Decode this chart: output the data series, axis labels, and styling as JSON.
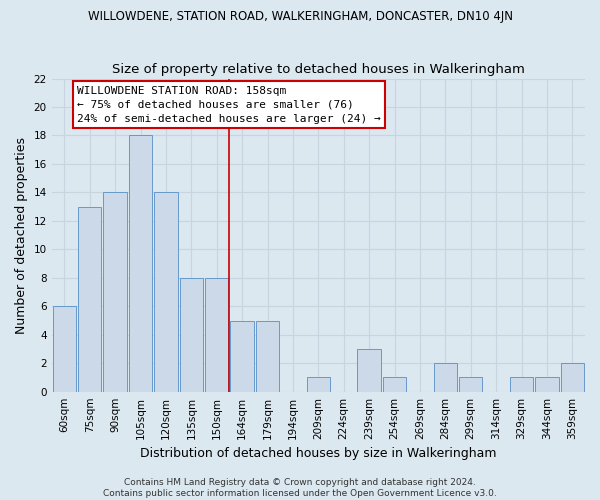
{
  "title": "WILLOWDENE, STATION ROAD, WALKERINGHAM, DONCASTER, DN10 4JN",
  "subtitle": "Size of property relative to detached houses in Walkeringham",
  "xlabel": "Distribution of detached houses by size in Walkeringham",
  "ylabel": "Number of detached properties",
  "categories": [
    "60sqm",
    "75sqm",
    "90sqm",
    "105sqm",
    "120sqm",
    "135sqm",
    "150sqm",
    "164sqm",
    "179sqm",
    "194sqm",
    "209sqm",
    "224sqm",
    "239sqm",
    "254sqm",
    "269sqm",
    "284sqm",
    "299sqm",
    "314sqm",
    "329sqm",
    "344sqm",
    "359sqm"
  ],
  "values": [
    6,
    13,
    14,
    18,
    14,
    8,
    8,
    5,
    5,
    0,
    1,
    0,
    3,
    1,
    0,
    2,
    1,
    0,
    1,
    1,
    2
  ],
  "bar_color": "#ccd9e8",
  "bar_edgecolor": "#6699cc",
  "reference_line_index": 7,
  "annotation_text": "WILLOWDENE STATION ROAD: 158sqm\n← 75% of detached houses are smaller (76)\n24% of semi-detached houses are larger (24) →",
  "annotation_box_facecolor": "#ffffff",
  "annotation_box_edgecolor": "#cc0000",
  "ylim_max": 22,
  "yticks": [
    0,
    2,
    4,
    6,
    8,
    10,
    12,
    14,
    16,
    18,
    20,
    22
  ],
  "grid_color": "#c8d4e0",
  "plot_bg_color": "#dce8f0",
  "fig_bg_color": "#dce8f0",
  "footer": "Contains HM Land Registry data © Crown copyright and database right 2024.\nContains public sector information licensed under the Open Government Licence v3.0.",
  "title_fontsize": 8.5,
  "subtitle_fontsize": 9.5,
  "xlabel_fontsize": 9,
  "ylabel_fontsize": 9,
  "tick_fontsize": 7.5,
  "annotation_fontsize": 8,
  "footer_fontsize": 6.5
}
